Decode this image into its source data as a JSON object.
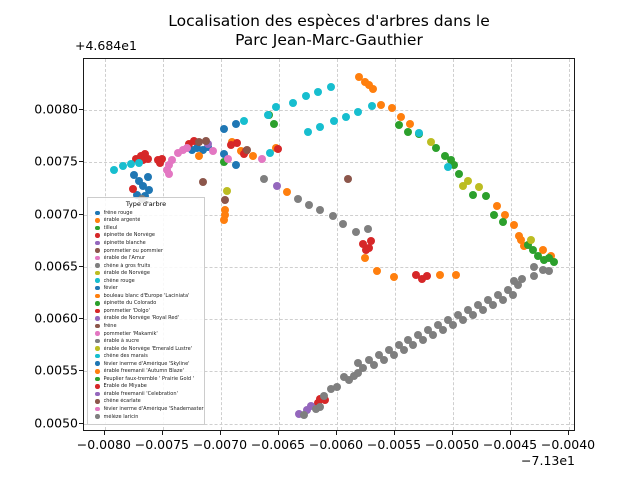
{
  "figure": {
    "title_line1": "Localisation des espèces d'arbres dans le",
    "title_line2": "Parc Jean-Marc-Gauthier",
    "y_offset_text": "+4.684e1",
    "x_offset_text": "−7.13e1"
  },
  "chart_data": {
    "type": "scatter",
    "title": "Localisation des espèces d'arbres dans le Parc Jean-Marc-Gauthier",
    "xlabel": "",
    "ylabel": "",
    "grid": true,
    "x_axis_offset": "−7.13e1",
    "y_axis_offset": "+4.684e1",
    "xlim": [
      -0.00818,
      -0.00394
    ],
    "ylim": [
      0.00492,
      0.00849
    ],
    "x_ticks": [
      {
        "v": -0.008,
        "label": "−0.0080"
      },
      {
        "v": -0.0075,
        "label": "−0.0075"
      },
      {
        "v": -0.007,
        "label": "−0.0070"
      },
      {
        "v": -0.0065,
        "label": "−0.0065"
      },
      {
        "v": -0.006,
        "label": "−0.0060"
      },
      {
        "v": -0.0055,
        "label": "−0.0055"
      },
      {
        "v": -0.005,
        "label": "−0.0050"
      },
      {
        "v": -0.0045,
        "label": "−0.0045"
      },
      {
        "v": -0.004,
        "label": "−0.0040"
      }
    ],
    "y_ticks": [
      {
        "v": 0.008,
        "label": "0.0080"
      },
      {
        "v": 0.0075,
        "label": "0.0075"
      },
      {
        "v": 0.007,
        "label": "0.0070"
      },
      {
        "v": 0.0065,
        "label": "0.0065"
      },
      {
        "v": 0.006,
        "label": "0.0060"
      },
      {
        "v": 0.0055,
        "label": "0.0055"
      },
      {
        "v": 0.005,
        "label": "0.0050"
      }
    ],
    "legend_title": "Type d'arbre",
    "legend": [
      {
        "label": "frêne rouge",
        "color": "#1f77b4"
      },
      {
        "label": "érable argenté",
        "color": "#ff7f0e"
      },
      {
        "label": "tilleul",
        "color": "#2ca02c"
      },
      {
        "label": "épinette de Norvège",
        "color": "#d62728"
      },
      {
        "label": "épinette blanche",
        "color": "#9467bd"
      },
      {
        "label": "pommetier ou pommier",
        "color": "#8c564b"
      },
      {
        "label": "érable de l'Amur",
        "color": "#e377c2"
      },
      {
        "label": "chêne à gros fruits",
        "color": "#7f7f7f"
      },
      {
        "label": "érable de Norvège",
        "color": "#bcbd22"
      },
      {
        "label": "chêne rouge",
        "color": "#17becf"
      },
      {
        "label": "févier",
        "color": "#1f77b4"
      },
      {
        "label": "bouleau blanc d'Europe 'Laciniata'",
        "color": "#ff7f0e"
      },
      {
        "label": "épinette du Colorado",
        "color": "#2ca02c"
      },
      {
        "label": "pommetier 'Dolgo'",
        "color": "#d62728"
      },
      {
        "label": "érable de Norvège 'Royal Red'",
        "color": "#9467bd"
      },
      {
        "label": "frêne",
        "color": "#8c564b"
      },
      {
        "label": "pommetier 'Makamik'",
        "color": "#e377c2"
      },
      {
        "label": "érable à sucre",
        "color": "#7f7f7f"
      },
      {
        "label": "érable de Norvège 'Emerald Lustre'",
        "color": "#bcbd22"
      },
      {
        "label": "chêne des marais",
        "color": "#17becf"
      },
      {
        "label": "févier inerme d'Amérique 'Skyline'",
        "color": "#1f77b4"
      },
      {
        "label": "érable freemanii 'Autumn Blaze'",
        "color": "#ff7f0e"
      },
      {
        "label": "Peuplier faux-tremble ' Prairie Gold '",
        "color": "#2ca02c"
      },
      {
        "label": "Érable de Miyabe",
        "color": "#d62728"
      },
      {
        "label": "érable freemanii 'Celebration'",
        "color": "#9467bd"
      },
      {
        "label": "chêne écarlate",
        "color": "#8c564b"
      },
      {
        "label": "févier inerme d'Amérique 'Shademaster'",
        "color": "#e377c2"
      },
      {
        "label": "mélèze laricin",
        "color": "#7f7f7f"
      }
    ],
    "series": [
      {
        "color": "#1f77b4",
        "points": [
          [
            -0.00775,
            0.007375
          ],
          [
            -0.007707,
            0.007327
          ],
          [
            -0.007672,
            0.007279
          ],
          [
            -0.007629,
            0.007356
          ],
          [
            -0.007621,
            0.00724
          ],
          [
            -0.007724,
            0.007192
          ],
          [
            -0.007655,
            0.007183
          ],
          [
            -0.00725,
            0.007615
          ],
          [
            -0.007207,
            0.007635
          ],
          [
            -0.007155,
            0.007615
          ],
          [
            -0.007112,
            0.007644
          ],
          [
            -0.006974,
            0.007817
          ],
          [
            -0.006871,
            0.007865
          ],
          [
            -0.006974,
            0.007577
          ],
          [
            -0.006871,
            0.007471
          ]
        ]
      },
      {
        "color": "#ff7f0e",
        "points": [
          [
            -0.00719,
            0.007558
          ],
          [
            -0.006828,
            0.007606
          ],
          [
            -0.006724,
            0.007558
          ],
          [
            -0.006526,
            0.007635
          ],
          [
            -0.006431,
            0.007221
          ],
          [
            -0.006905,
            0.007692
          ],
          [
            -0.00581,
            0.008317
          ],
          [
            -0.005759,
            0.008269
          ],
          [
            -0.005724,
            0.00824
          ],
          [
            -0.00569,
            0.008202
          ],
          [
            -0.005621,
            0.008048
          ],
          [
            -0.005526,
            0.008019
          ],
          [
            -0.005448,
            0.007933
          ],
          [
            -0.005371,
            0.007865
          ],
          [
            -0.004621,
            0.007087
          ],
          [
            -0.004552,
            0.007
          ],
          [
            -0.004474,
            0.006904
          ],
          [
            -0.004431,
            0.006798
          ],
          [
            -0.004388,
            0.006702
          ],
          [
            -0.004414,
            0.00676
          ],
          [
            -0.004224,
            0.006663
          ],
          [
            -0.004155,
            0.006606
          ],
          [
            -0.006966,
            0.007048
          ],
          [
            -0.006966,
            0.007
          ],
          [
            -0.006974,
            0.006952
          ],
          [
            -0.005759,
            0.006587
          ],
          [
            -0.005655,
            0.006462
          ],
          [
            -0.005509,
            0.006404
          ],
          [
            -0.005112,
            0.006423
          ],
          [
            -0.004974,
            0.006423
          ]
        ]
      },
      {
        "color": "#2ca02c",
        "points": [
          [
            -0.006586,
            0.007952
          ],
          [
            -0.006543,
            0.007865
          ],
          [
            -0.006974,
            0.0075
          ],
          [
            -0.005466,
            0.007856
          ],
          [
            -0.005388,
            0.007788
          ],
          [
            -0.005293,
            0.007769
          ],
          [
            -0.005147,
            0.007635
          ],
          [
            -0.005069,
            0.007558
          ],
          [
            -0.005017,
            0.007519
          ],
          [
            -0.004991,
            0.007471
          ],
          [
            -0.004948,
            0.007385
          ],
          [
            -0.004828,
            0.007192
          ],
          [
            -0.004716,
            0.007183
          ],
          [
            -0.004647,
            0.007
          ],
          [
            -0.004569,
            0.006933
          ],
          [
            -0.004353,
            0.006712
          ],
          [
            -0.00431,
            0.006663
          ],
          [
            -0.004267,
            0.006606
          ],
          [
            -0.004216,
            0.006567
          ],
          [
            -0.004172,
            0.006587
          ],
          [
            -0.004129,
            0.006548
          ]
        ]
      },
      {
        "color": "#d62728",
        "points": [
          [
            -0.007733,
            0.007529
          ],
          [
            -0.00769,
            0.007558
          ],
          [
            -0.007655,
            0.007577
          ],
          [
            -0.007672,
            0.007519
          ],
          [
            -0.007629,
            0.007529
          ],
          [
            -0.007543,
            0.007519
          ],
          [
            -0.007509,
            0.007529
          ],
          [
            -0.007526,
            0.00749
          ],
          [
            -0.007276,
            0.007673
          ],
          [
            -0.007233,
            0.007702
          ],
          [
            -0.006914,
            0.007663
          ],
          [
            -0.006862,
            0.007683
          ],
          [
            -0.006802,
            0.007577
          ],
          [
            -0.006784,
            0.007606
          ],
          [
            -0.006509,
            0.007625
          ],
          [
            -0.007759,
            0.00725
          ],
          [
            -0.005776,
            0.006721
          ],
          [
            -0.005707,
            0.00675
          ],
          [
            -0.00575,
            0.006663
          ],
          [
            -0.005724,
            0.006683
          ],
          [
            -0.005319,
            0.006423
          ],
          [
            -0.005267,
            0.006385
          ],
          [
            -0.005224,
            0.006413
          ],
          [
            -0.006147,
            0.00524
          ],
          [
            -0.006103,
            0.005231
          ],
          [
            -0.006164,
            0.005202
          ]
        ]
      },
      {
        "color": "#9467bd",
        "points": [
          [
            -0.007112,
            0.007673
          ],
          [
            -0.006517,
            0.007279
          ],
          [
            -0.006328,
            0.005096
          ],
          [
            -0.006259,
            0.005135
          ],
          [
            -0.006224,
            0.005173
          ]
        ]
      },
      {
        "color": "#8c564b",
        "points": [
          [
            -0.00719,
            0.007692
          ],
          [
            -0.007129,
            0.007702
          ],
          [
            -0.007155,
            0.007317
          ],
          [
            -0.006966,
            0.007144
          ],
          [
            -0.006776,
            0.007615
          ],
          [
            -0.005905,
            0.007337
          ]
        ]
      },
      {
        "color": "#e377c2",
        "points": [
          [
            -0.007448,
            0.007471
          ],
          [
            -0.007466,
            0.007423
          ],
          [
            -0.007448,
            0.007385
          ],
          [
            -0.007422,
            0.007519
          ],
          [
            -0.007371,
            0.007587
          ],
          [
            -0.007328,
            0.007615
          ],
          [
            -0.007293,
            0.007635
          ],
          [
            -0.007069,
            0.007606
          ],
          [
            -0.00694,
            0.007529
          ],
          [
            -0.006647,
            0.007529
          ]
        ]
      },
      {
        "color": "#7f7f7f",
        "points": [
          [
            -0.007681,
            0.007154
          ],
          [
            -0.006629,
            0.007337
          ],
          [
            -0.006336,
            0.007154
          ],
          [
            -0.006241,
            0.007096
          ],
          [
            -0.006147,
            0.007048
          ],
          [
            -0.006034,
            0.00699
          ],
          [
            -0.005948,
            0.006913
          ],
          [
            -0.005836,
            0.006837
          ],
          [
            -0.005733,
            0.006865
          ],
          [
            -0.004302,
            0.0065
          ],
          [
            -0.004224,
            0.006471
          ],
          [
            -0.004302,
            0.006413
          ],
          [
            -0.004172,
            0.006462
          ],
          [
            -0.006284,
            0.005087
          ],
          [
            -0.006181,
            0.005144
          ],
          [
            -0.006147,
            0.005163
          ],
          [
            -0.006112,
            0.005269
          ],
          [
            -0.006052,
            0.005327
          ],
          [
            -0.006,
            0.005346
          ],
          [
            -0.00594,
            0.005442
          ],
          [
            -0.005897,
            0.005413
          ],
          [
            -0.005853,
            0.005452
          ],
          [
            -0.005819,
            0.005481
          ],
          [
            -0.005819,
            0.005577
          ],
          [
            -0.005776,
            0.005529
          ],
          [
            -0.005724,
            0.005606
          ],
          [
            -0.005681,
            0.005558
          ],
          [
            -0.005638,
            0.005654
          ],
          [
            -0.005595,
            0.005606
          ],
          [
            -0.005552,
            0.005702
          ],
          [
            -0.005509,
            0.005654
          ],
          [
            -0.005466,
            0.00575
          ],
          [
            -0.005422,
            0.005702
          ],
          [
            -0.005388,
            0.005798
          ],
          [
            -0.005345,
            0.00575
          ],
          [
            -0.005302,
            0.005846
          ],
          [
            -0.005259,
            0.005798
          ],
          [
            -0.005216,
            0.005894
          ],
          [
            -0.005172,
            0.005846
          ],
          [
            -0.005129,
            0.005942
          ],
          [
            -0.005086,
            0.005894
          ],
          [
            -0.005043,
            0.00599
          ],
          [
            -0.005,
            0.005942
          ],
          [
            -0.004957,
            0.006038
          ],
          [
            -0.004914,
            0.00599
          ],
          [
            -0.004871,
            0.006087
          ],
          [
            -0.004828,
            0.006038
          ],
          [
            -0.004784,
            0.006135
          ],
          [
            -0.004741,
            0.006087
          ],
          [
            -0.004698,
            0.006183
          ],
          [
            -0.004655,
            0.006135
          ],
          [
            -0.004612,
            0.006231
          ],
          [
            -0.004569,
            0.006183
          ],
          [
            -0.004526,
            0.006279
          ],
          [
            -0.004483,
            0.006231
          ],
          [
            -0.00444,
            0.006327
          ],
          [
            -0.004405,
            0.006385
          ],
          [
            -0.004474,
            0.006365
          ]
        ]
      },
      {
        "color": "#bcbd22",
        "points": [
          [
            -0.006948,
            0.007231
          ],
          [
            -0.00519,
            0.007692
          ],
          [
            -0.004914,
            0.007279
          ],
          [
            -0.004871,
            0.007327
          ],
          [
            -0.004776,
            0.007269
          ],
          [
            -0.004328,
            0.00676
          ]
        ]
      },
      {
        "color": "#17becf",
        "points": [
          [
            -0.007922,
            0.007423
          ],
          [
            -0.007845,
            0.007462
          ],
          [
            -0.007776,
            0.007481
          ],
          [
            -0.007707,
            0.00749
          ],
          [
            -0.006802,
            0.007894
          ],
          [
            -0.006595,
            0.007952
          ],
          [
            -0.006526,
            0.008029
          ],
          [
            -0.006379,
            0.008067
          ],
          [
            -0.006267,
            0.008135
          ],
          [
            -0.006164,
            0.008173
          ],
          [
            -0.006052,
            0.008221
          ],
          [
            -0.00625,
            0.007788
          ],
          [
            -0.006147,
            0.007837
          ],
          [
            -0.006026,
            0.007894
          ],
          [
            -0.005922,
            0.007933
          ],
          [
            -0.005819,
            0.007981
          ],
          [
            -0.005698,
            0.008038
          ],
          [
            -0.005293,
            0.007779
          ],
          [
            -0.005043,
            0.007452
          ],
          [
            -0.006578,
            0.007587
          ]
        ]
      }
    ]
  }
}
